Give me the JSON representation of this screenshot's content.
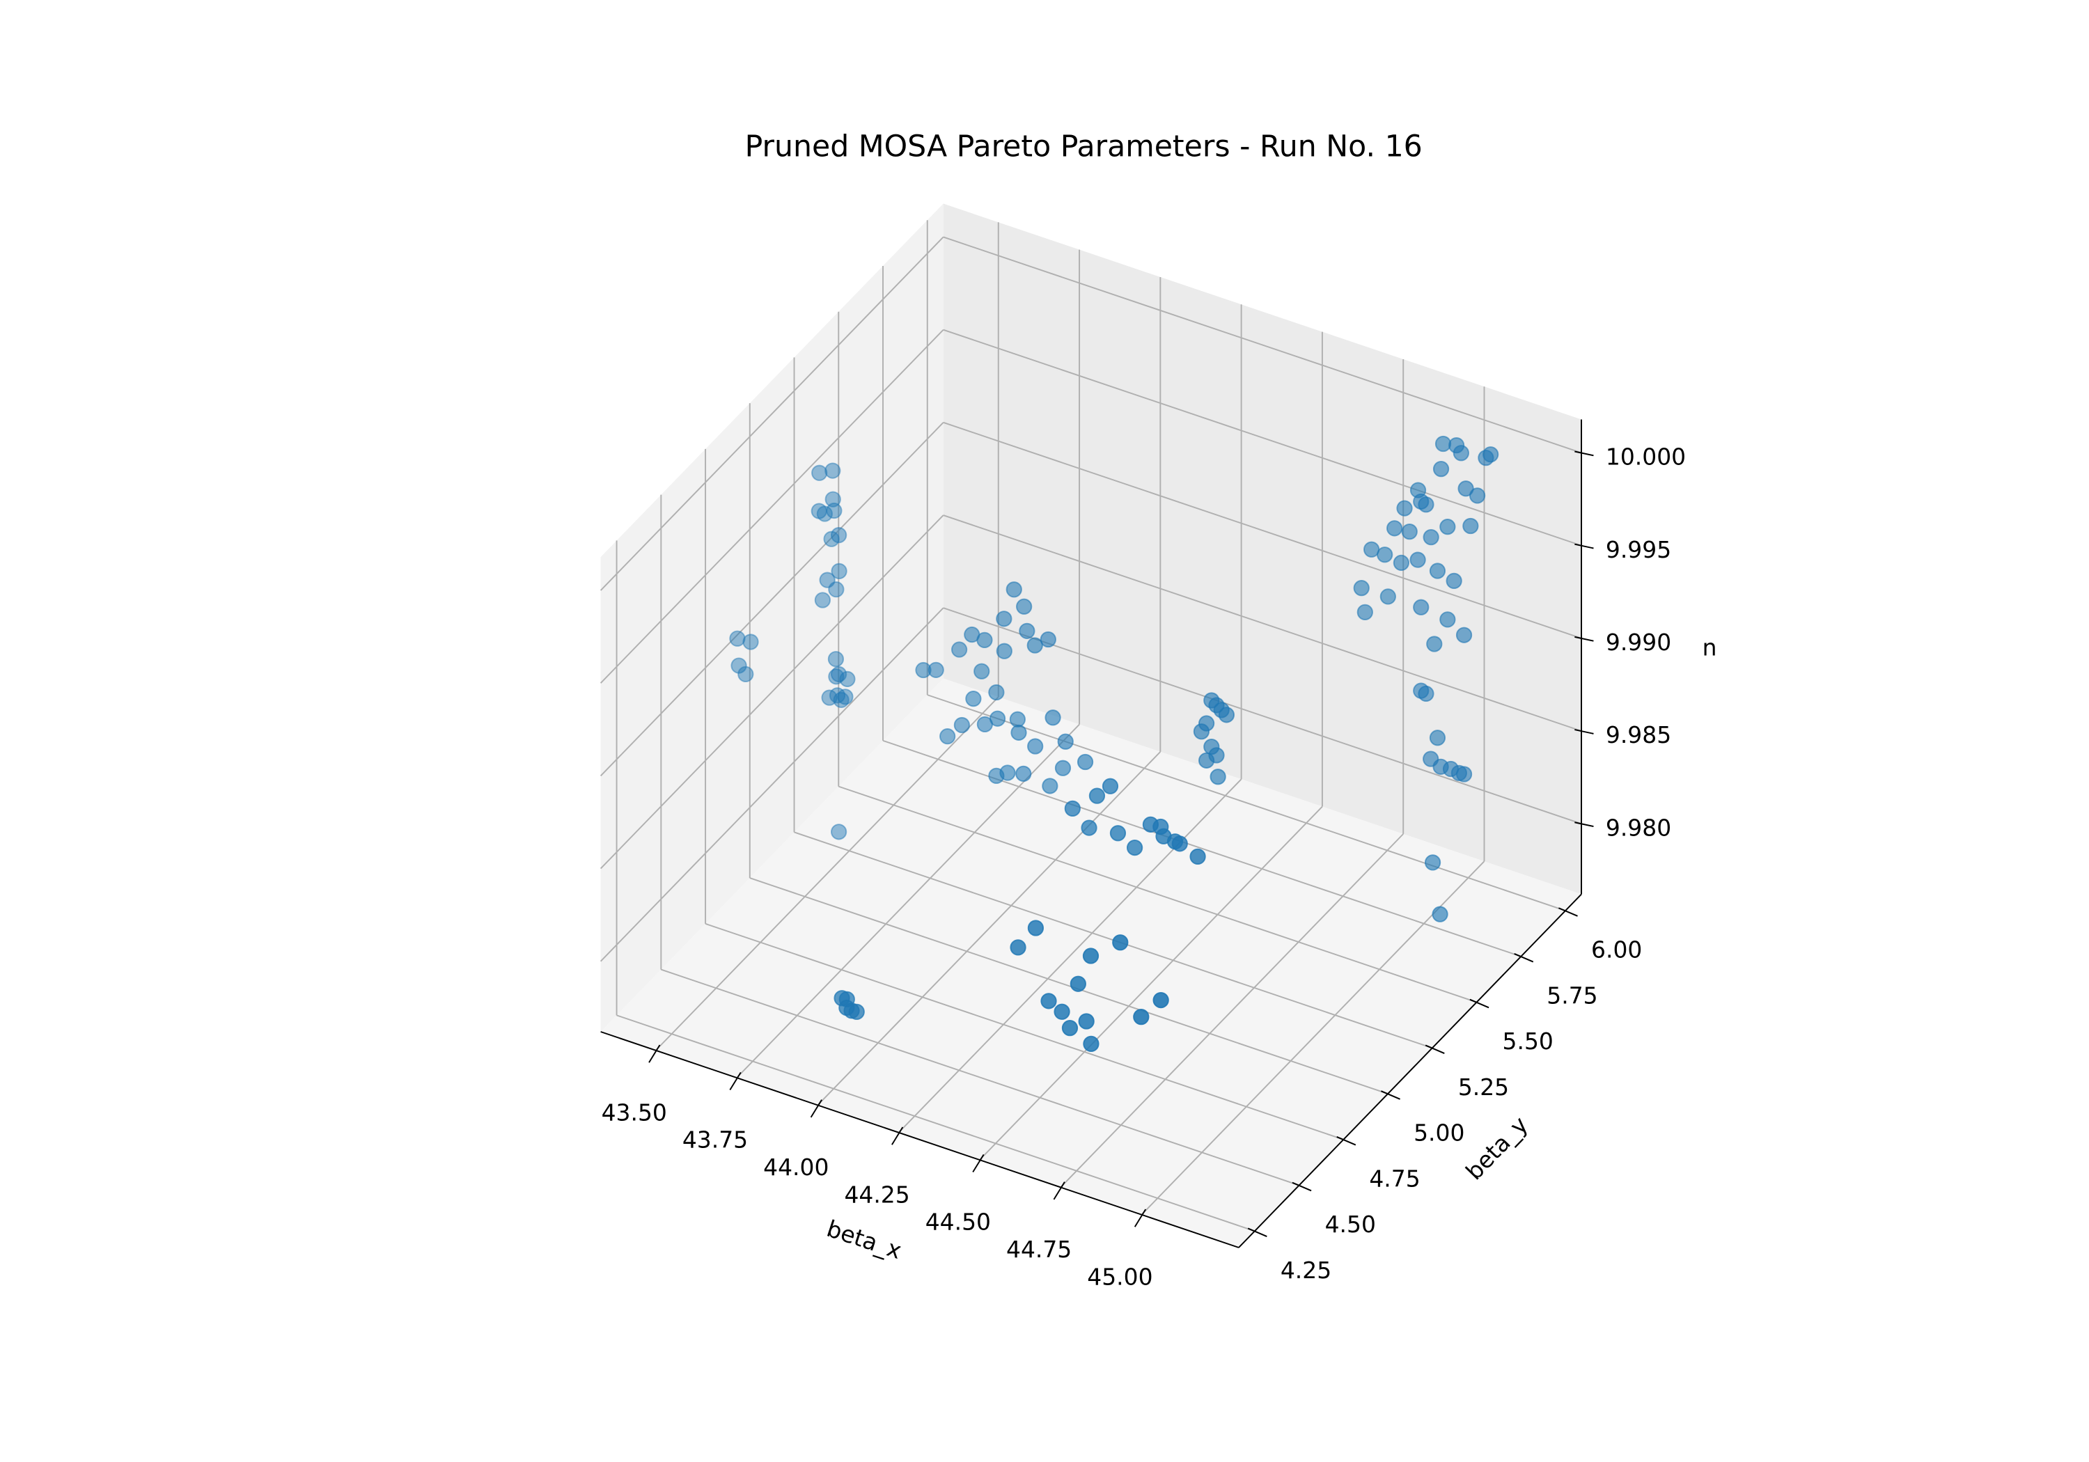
{
  "chart_data": {
    "type": "scatter3d",
    "title": "Pruned MOSA Pareto Parameters - Run No. 16",
    "xlabel": "beta_x",
    "ylabel": "beta_y",
    "zlabel": "n",
    "color": "#1f77b4",
    "grid": true,
    "xlim": [
      43.33,
      45.3
    ],
    "ylim": [
      4.16,
      6.09
    ],
    "zlim": [
      9.9762,
      10.0018
    ],
    "xticks": [
      {
        "value": 43.5,
        "label": "43.50"
      },
      43.75,
      {
        "value": 44,
        "label": "44.00"
      },
      44.25,
      {
        "value": 44.5,
        "label": "44.50"
      },
      44.75,
      {
        "value": 45,
        "label": "45.00"
      }
    ],
    "yticks": [
      4.25,
      {
        "value": 4.5,
        "label": "4.50"
      },
      4.75,
      {
        "value": 5,
        "label": "5.00"
      },
      5.25,
      {
        "value": 5.5,
        "label": "5.50"
      },
      5.75,
      {
        "value": 6,
        "label": "6.00"
      }
    ],
    "zticks": [
      {
        "value": 9.98,
        "label": "9.980"
      },
      9.985,
      {
        "value": 9.99,
        "label": "9.990"
      },
      9.995,
      {
        "value": 10,
        "label": "10.000"
      }
    ],
    "x": [
      43.49,
      43.52,
      43.5,
      43.51,
      43.53,
      43.49,
      43.55,
      43.5,
      43.52,
      43.54,
      43.5,
      43.52,
      43.33,
      43.36,
      43.34,
      43.35,
      43.53,
      43.55,
      43.52,
      43.54,
      43.56,
      43.51,
      43.57,
      43.53,
      44.08,
      44.1,
      44.06,
      44.12,
      44.15,
      44.18,
      44.05,
      44.0,
      43.95,
      43.9,
      43.85,
      43.98,
      44.02,
      43.96,
      44.04,
      44.08,
      43.99,
      44.1,
      44.14,
      43.93,
      44.2,
      44.25,
      44.22,
      44.3,
      44.12,
      44.06,
      44.18,
      43.8,
      43.88,
      44.02,
      44.58,
      44.59,
      44.6,
      44.61,
      44.57,
      44.56,
      44.58,
      44.57,
      44.59,
      44.6,
      44.71,
      44.73,
      44.75,
      44.78,
      44.8,
      44.62,
      44.58,
      44.55,
      44.52,
      44.48,
      44.65,
      44.85,
      44.83,
      44.75,
      44.95,
      44.9,
      44.7,
      44.62,
      44.65,
      44.68,
      44.72,
      44.74,
      44.58,
      44.52,
      44.02,
      44.03,
      44.04,
      44.05,
      44.06,
      44.95,
      44.98,
      45.0,
      45.08,
      45.06,
      44.96,
      44.9,
      44.92,
      44.93,
      44.88,
      45.02,
      45.05,
      44.86,
      44.89,
      44.94,
      44.98,
      45.04,
      44.8,
      44.83,
      44.87,
      44.91,
      44.96,
      45.0,
      44.78,
      44.84,
      44.92,
      44.98,
      45.02,
      44.78,
      44.95,
      44.92,
      44.93,
      44.95,
      44.97,
      44.99,
      45.01,
      45.02,
      44.96,
      43.55,
      45.0,
      45.05
    ],
    "y": [
      5.1,
      5.12,
      5.08,
      5.14,
      5.11,
      5.13,
      5.1,
      5.15,
      5.09,
      5.12,
      5.1,
      5.14,
      4.93,
      4.95,
      4.92,
      4.94,
      5.12,
      5.1,
      5.14,
      5.11,
      5.13,
      5.12,
      5.1,
      5.15,
      5.12,
      5.14,
      5.1,
      5.12,
      5.11,
      5.13,
      5.12,
      5.1,
      5.12,
      5.14,
      5.1,
      5.12,
      5.13,
      5.11,
      5.1,
      5.14,
      5.12,
      5.11,
      5.13,
      5.1,
      5.12,
      5.1,
      5.14,
      5.12,
      5.1,
      5.12,
      5.14,
      5.12,
      5.11,
      5.13,
      5.32,
      5.33,
      5.34,
      5.35,
      5.31,
      5.3,
      5.32,
      5.31,
      5.33,
      5.32,
      4.74,
      4.76,
      4.74,
      4.75,
      4.74,
      4.72,
      4.75,
      4.73,
      4.74,
      4.72,
      4.76,
      4.75,
      4.35,
      4.33,
      4.36,
      4.34,
      4.35,
      4.33,
      4.35,
      4.34,
      4.36,
      4.35,
      4.33,
      4.34,
      4.26,
      4.27,
      4.25,
      4.26,
      4.27,
      5.95,
      5.97,
      5.96,
      5.98,
      5.99,
      5.92,
      5.9,
      5.88,
      5.89,
      5.86,
      5.95,
      5.96,
      5.84,
      5.87,
      5.9,
      5.92,
      5.94,
      5.82,
      5.84,
      5.86,
      5.88,
      5.9,
      5.92,
      5.8,
      5.84,
      5.88,
      5.92,
      5.94,
      5.82,
      5.9,
      5.88,
      5.89,
      5.88,
      5.9,
      5.92,
      5.93,
      5.94,
      5.9,
      5.1,
      5.8,
      5.75
    ],
    "z": [
      9.998,
      9.9981,
      9.9962,
      9.9963,
      9.9961,
      9.9955,
      9.995,
      9.994,
      9.9925,
      9.9928,
      9.9912,
      9.9915,
      9.9898,
      9.9896,
      9.9885,
      9.9879,
      9.988,
      9.9875,
      9.9868,
      9.9862,
      9.987,
      9.9858,
      9.9864,
      9.9855,
      9.995,
      9.994,
      9.9935,
      9.993,
      9.9925,
      9.9928,
      9.9915,
      9.992,
      9.9918,
      9.9905,
      9.9895,
      9.99,
      9.989,
      9.9885,
      9.988,
      9.9878,
      9.9872,
      9.9875,
      9.9868,
      9.987,
      9.9888,
      9.988,
      9.986,
      9.987,
      9.9855,
      9.985,
      9.9848,
      9.989,
      9.986,
      9.9845,
      9.99,
      9.9897,
      9.9894,
      9.9891,
      9.9888,
      9.9884,
      9.9875,
      9.9868,
      9.987,
      9.986,
      9.9898,
      9.9896,
      9.9894,
      9.9892,
      9.9893,
      9.989,
      9.991,
      9.9905,
      9.9885,
      9.9895,
      9.988,
      9.9888,
      9.988,
      9.987,
      9.9855,
      9.9845,
      9.985,
      9.9838,
      9.9832,
      9.9826,
      9.983,
      9.982,
      9.9875,
      9.986,
      9.9811,
      9.981,
      9.9808,
      9.9806,
      9.9805,
      9.9998,
      9.9997,
      9.9995,
      9.9997,
      9.9993,
      9.9988,
      9.9975,
      9.9972,
      9.997,
      9.9968,
      9.9978,
      9.9975,
      9.9958,
      9.9955,
      9.9952,
      9.9958,
      9.996,
      9.9945,
      9.9942,
      9.9938,
      9.994,
      9.9935,
      9.993,
      9.9925,
      9.992,
      9.9915,
      9.9908,
      9.99,
      9.991,
      9.9895,
      9.987,
      9.9868,
      9.9835,
      9.983,
      9.9828,
      9.9826,
      9.9825,
      9.9845,
      9.979,
      9.979,
      9.977
    ]
  }
}
